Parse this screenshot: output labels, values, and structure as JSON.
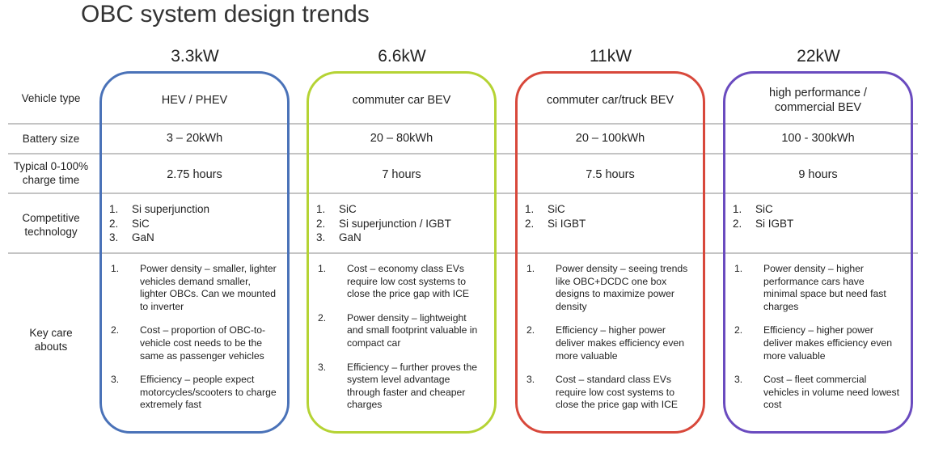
{
  "title": "OBC system design trends",
  "row_labels": {
    "vehicle_type": "Vehicle type",
    "battery_size": "Battery size",
    "charge_time": "Typical 0-100%\ncharge time",
    "competitive_technology": "Competitive\ntechnology",
    "key_care_abouts": "Key care\nabouts"
  },
  "columns": [
    {
      "power": "3.3kW",
      "color": "#4a72b8",
      "vehicle_type": "HEV / PHEV",
      "battery_size": "3 – 20kWh",
      "charge_time": "2.75 hours",
      "technology": [
        "Si superjunction",
        "SiC",
        "GaN"
      ],
      "care_abouts": [
        "Power density – smaller, lighter vehicles demand smaller, lighter OBCs. Can we mounted to inverter",
        "Cost – proportion of OBC-to-vehicle cost needs to be the same as passenger vehicles",
        "Efficiency – people expect motorcycles/scooters to charge extremely fast"
      ]
    },
    {
      "power": "6.6kW",
      "color": "#b5d334",
      "vehicle_type": "commuter car BEV",
      "battery_size": "20 – 80kWh",
      "charge_time": "7 hours",
      "technology": [
        "SiC",
        "Si superjunction / IGBT",
        "GaN"
      ],
      "care_abouts": [
        "Cost – economy class EVs require low cost systems to close the price gap with ICE",
        "Power density – lightweight and small footprint valuable in compact car",
        "Efficiency – further proves the system level advantage through faster and cheaper charges"
      ]
    },
    {
      "power": "11kW",
      "color": "#d8483b",
      "vehicle_type": "commuter car/truck BEV",
      "battery_size": "20 – 100kWh",
      "charge_time": "7.5 hours",
      "technology": [
        "SiC",
        "Si IGBT"
      ],
      "care_abouts": [
        "Power density – seeing trends like OBC+DCDC one box designs to maximize power density",
        "Efficiency – higher power deliver makes efficiency even more valuable",
        "Cost – standard class EVs require low cost systems to close the price gap with ICE"
      ]
    },
    {
      "power": "22kW",
      "color": "#6a4bbf",
      "vehicle_type": "high performance /\ncommercial BEV",
      "battery_size": "100 - 300kWh",
      "charge_time": "9 hours",
      "technology": [
        "SiC",
        "Si IGBT"
      ],
      "care_abouts": [
        "Power density – higher performance cars have minimal space but need fast charges",
        "Efficiency – higher power deliver makes efficiency even more valuable",
        "Cost – fleet commercial vehicles in volume need lowest cost"
      ]
    }
  ]
}
